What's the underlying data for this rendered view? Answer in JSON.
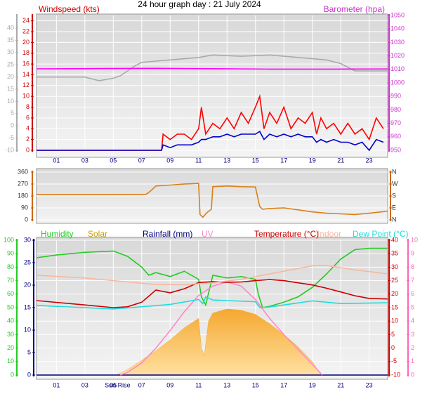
{
  "title": "24 hour graph day : 21 July 2024",
  "chart_data": [
    {
      "type": "line",
      "xlim": [
        -0.4,
        24.3
      ],
      "xticks": [
        {
          "value": 1,
          "label": "01"
        },
        {
          "value": 3,
          "label": "03"
        },
        {
          "value": 5,
          "label": "05"
        },
        {
          "value": 7,
          "label": "07"
        },
        {
          "value": 9,
          "label": "09"
        },
        {
          "value": 11,
          "label": "11"
        },
        {
          "value": 13,
          "label": "13"
        },
        {
          "value": 15,
          "label": "15"
        },
        {
          "value": 17,
          "label": "17"
        },
        {
          "value": 19,
          "label": "19"
        },
        {
          "value": 21,
          "label": "21"
        },
        {
          "value": 23,
          "label": "23"
        }
      ],
      "axes": [
        {
          "side": "left",
          "label": "Windspeed (kts)",
          "color": "#cc0000",
          "grid": true,
          "lim": [
            0,
            25
          ],
          "ticks": [
            0,
            2,
            4,
            6,
            8,
            10,
            12,
            14,
            16,
            18,
            20,
            22,
            24
          ]
        },
        {
          "side": "left",
          "color": "#aaaaaa",
          "lim": [
            -10,
            45.2
          ],
          "ticks": [
            -10,
            -5,
            0,
            5,
            10,
            15,
            20,
            25,
            30,
            35,
            40
          ]
        },
        {
          "side": "right",
          "label": "Barometer (hpa)",
          "color": "#cc33cc",
          "lim": [
            950,
            1050
          ],
          "ticks": [
            950,
            960,
            970,
            980,
            990,
            1000,
            1010,
            1020,
            1030,
            1040,
            1050
          ]
        }
      ],
      "series": [
        {
          "color": "#aaaaaa",
          "axis": 1,
          "x": [
            -0.4,
            3,
            4,
            5,
            5.5,
            6,
            6.5,
            7,
            8,
            10,
            11,
            12,
            14,
            16,
            18,
            19,
            20,
            21,
            22,
            24.3
          ],
          "values": [
            20,
            20,
            18.5,
            19.5,
            20.5,
            22.5,
            24.5,
            26,
            26.5,
            27.5,
            28,
            29,
            28.5,
            29,
            28,
            27.5,
            27,
            25.5,
            22.5,
            22.5
          ]
        },
        {
          "color": "#ff00ff",
          "axis": 2,
          "x": [
            -0.4,
            4,
            8,
            12,
            16,
            20,
            24.3
          ],
          "values": [
            1010.4,
            1010.6,
            1010.8,
            1010.5,
            1010.2,
            1010.2,
            1010.3
          ]
        },
        {
          "color": "#ff0000",
          "axis": 0,
          "x": [
            -0.4,
            8.3,
            8.4,
            8.5,
            9,
            9.5,
            10,
            10.5,
            11,
            11.2,
            11.5,
            12,
            12.5,
            13,
            13.5,
            14,
            14.5,
            15,
            15.3,
            15.6,
            16,
            16.5,
            17,
            17.5,
            18,
            18.5,
            19,
            19.3,
            19.6,
            20,
            20.5,
            21,
            21.5,
            22,
            22.5,
            23,
            23.5,
            24
          ],
          "values": [
            0,
            0,
            0,
            3,
            2,
            3,
            3,
            2,
            4,
            8,
            3,
            5,
            4,
            6,
            4,
            7,
            5,
            8,
            10,
            4,
            7,
            5,
            8,
            4,
            6,
            5,
            7,
            3,
            6,
            4,
            5,
            3,
            5,
            3,
            4,
            2,
            6,
            4
          ]
        },
        {
          "color": "#0000cc",
          "axis": 0,
          "x": [
            -0.4,
            8.3,
            8.4,
            8.5,
            9,
            9.5,
            10,
            10.5,
            11,
            11.2,
            11.5,
            12,
            12.5,
            13,
            13.5,
            14,
            14.5,
            15,
            15.3,
            15.6,
            16,
            16.5,
            17,
            17.5,
            18,
            18.5,
            19,
            19.3,
            19.6,
            20,
            20.5,
            21,
            21.5,
            22,
            22.5,
            23,
            23.5,
            24
          ],
          "values": [
            0,
            0,
            0,
            1,
            0.5,
            1,
            1,
            1,
            1.5,
            2,
            2,
            2.5,
            2.5,
            3,
            2.5,
            3,
            3,
            3,
            3.5,
            2,
            3,
            2.5,
            3,
            2.5,
            3,
            2.5,
            2.5,
            1.5,
            2,
            1.5,
            2,
            1.5,
            1.5,
            1,
            1.5,
            0,
            2,
            1.5
          ]
        }
      ]
    },
    {
      "type": "line",
      "xlim": [
        -0.4,
        24.3
      ],
      "axes": [
        {
          "side": "left",
          "color": "#cc6600",
          "grid": true,
          "lim": [
            0,
            360
          ],
          "ticks": [
            0,
            90,
            180,
            270,
            360
          ]
        },
        {
          "side": "right",
          "color": "#cc6600",
          "lim": [
            0,
            360
          ],
          "ticks": [
            {
              "value": 360,
              "label": "N"
            },
            {
              "value": 270,
              "label": "W"
            },
            {
              "value": 180,
              "label": "S"
            },
            {
              "value": 90,
              "label": "E"
            },
            {
              "value": 0,
              "label": "N"
            }
          ]
        }
      ],
      "series": [
        {
          "color": "#d9801a",
          "axis": 0,
          "x": [
            -0.4,
            5,
            7.3,
            7.6,
            8,
            9,
            10,
            11,
            11.1,
            11.3,
            11.6,
            11.9,
            12,
            13,
            14,
            15,
            15.3,
            15.5,
            16,
            17,
            18,
            19,
            20,
            21,
            22,
            23,
            24.3
          ],
          "values": [
            190,
            190,
            192,
            215,
            255,
            262,
            270,
            275,
            40,
            20,
            55,
            80,
            250,
            255,
            250,
            248,
            100,
            80,
            85,
            90,
            75,
            60,
            50,
            45,
            40,
            50,
            65
          ]
        }
      ]
    },
    {
      "type": "line",
      "xlim": [
        -0.4,
        24.3
      ],
      "xticks": [
        {
          "value": 1,
          "label": "01"
        },
        {
          "value": 3,
          "label": "03"
        },
        {
          "value": 5,
          "label": "05"
        },
        {
          "value": 7,
          "label": "07"
        },
        {
          "value": 9,
          "label": "09"
        },
        {
          "value": 11,
          "label": "11"
        },
        {
          "value": 13,
          "label": "13"
        },
        {
          "value": 15,
          "label": "15"
        },
        {
          "value": 17,
          "label": "17"
        },
        {
          "value": 19,
          "label": "19"
        },
        {
          "value": 21,
          "label": "21"
        },
        {
          "value": 23,
          "label": "23"
        }
      ],
      "annotations": [
        {
          "text": "Sun Rise",
          "x": 5.3
        }
      ],
      "axes": [
        {
          "side": "left",
          "color": "#22cc22",
          "grid": true,
          "lim": [
            0,
            100
          ],
          "ticks": [
            0,
            10,
            20,
            30,
            40,
            50,
            60,
            70,
            80,
            90,
            100
          ]
        },
        {
          "side": "left",
          "color": "#000080",
          "lim": [
            0,
            30
          ],
          "ticks": [
            0,
            5,
            10,
            15,
            20,
            25,
            30
          ]
        },
        {
          "side": "right",
          "color": "#cc0000",
          "lim": [
            -10,
            40
          ],
          "ticks": [
            -10,
            -5,
            0,
            5,
            10,
            15,
            20,
            25,
            30,
            35,
            40
          ]
        },
        {
          "side": "right",
          "color": "#ff66bb",
          "lim": [
            0,
            10
          ],
          "ticks": [
            0,
            1,
            2,
            3,
            4,
            5,
            6,
            7,
            8,
            9,
            10
          ]
        }
      ],
      "series": [
        {
          "name": "Humidity",
          "color": "#22cc22",
          "axis": 0,
          "x": [
            -0.4,
            1,
            3,
            5,
            6,
            7,
            7.5,
            8,
            9,
            10,
            11,
            11.2,
            11.5,
            12,
            13,
            14,
            15,
            15.2,
            15.5,
            16,
            17,
            18,
            19,
            20,
            21,
            22,
            23,
            24.3
          ],
          "values": [
            87,
            89,
            91,
            92,
            88,
            80,
            74,
            76,
            73,
            77,
            71,
            58,
            52,
            74,
            72,
            73,
            71,
            60,
            50,
            51,
            54,
            58,
            65,
            75,
            86,
            93,
            94,
            94
          ]
        },
        {
          "name": "Solar",
          "color": "#f5a830",
          "kind": "area",
          "axis": 0,
          "x": [
            5.2,
            6,
            7,
            8,
            9,
            10,
            11,
            11.2,
            11.4,
            11.7,
            12,
            13,
            14,
            15,
            16,
            17,
            18,
            19,
            19.6
          ],
          "values": [
            0,
            4,
            11,
            18,
            26,
            35,
            42,
            20,
            14,
            40,
            46,
            49,
            48,
            45,
            38,
            30,
            21,
            10,
            0
          ]
        },
        {
          "name": "Rainfall (mm)",
          "color": "#000080",
          "axis": 1,
          "x": [
            -0.4,
            24.3
          ],
          "values": [
            0,
            0
          ]
        },
        {
          "name": "UV",
          "color": "#ff88cc",
          "axis": 3,
          "x": [
            5.5,
            6,
            7,
            8,
            9,
            10,
            11,
            12,
            13,
            14,
            15,
            16,
            17,
            18,
            19,
            19.7
          ],
          "values": [
            0,
            0.2,
            0.9,
            2,
            3.3,
            4.7,
            5.9,
            6.6,
            6.9,
            6.6,
            5.6,
            4.2,
            3,
            1.9,
            0.8,
            0
          ]
        },
        {
          "name": "Temperature (°C)",
          "color": "#cc0000",
          "axis": 2,
          "x": [
            -0.4,
            3,
            5,
            6,
            7,
            8,
            9,
            10,
            11,
            12,
            13,
            14,
            15,
            16,
            17,
            18,
            19,
            20,
            21,
            22,
            23,
            24.3
          ],
          "values": [
            17.6,
            16,
            15,
            15.3,
            17,
            21.5,
            20.5,
            22,
            24.3,
            24.6,
            24.4,
            24.5,
            25,
            25.4,
            25,
            24.2,
            23.4,
            22.2,
            20.8,
            19.4,
            18.4,
            18.2
          ]
        },
        {
          "name": "Indoor",
          "color": "#f5b8a0",
          "axis": 2,
          "x": [
            -0.4,
            3,
            6,
            8,
            10,
            12,
            14,
            16,
            18,
            19,
            20,
            22,
            24.3
          ],
          "values": [
            27,
            26,
            24.5,
            23.6,
            23.5,
            24.2,
            25.5,
            27.5,
            29.5,
            30.5,
            30.6,
            29,
            27.5
          ]
        },
        {
          "name": "Dew Point (°C)",
          "color": "#22dddd",
          "axis": 2,
          "x": [
            -0.4,
            3,
            5,
            7,
            9,
            11,
            11.3,
            11.5,
            12,
            13,
            15,
            15.3,
            16,
            17,
            19,
            21,
            24.3
          ],
          "values": [
            15.8,
            15,
            14.5,
            15.3,
            16.2,
            18,
            16.5,
            19,
            17.8,
            17.6,
            17.2,
            15,
            15.2,
            16,
            17.5,
            16.5,
            16.8
          ]
        }
      ]
    }
  ]
}
